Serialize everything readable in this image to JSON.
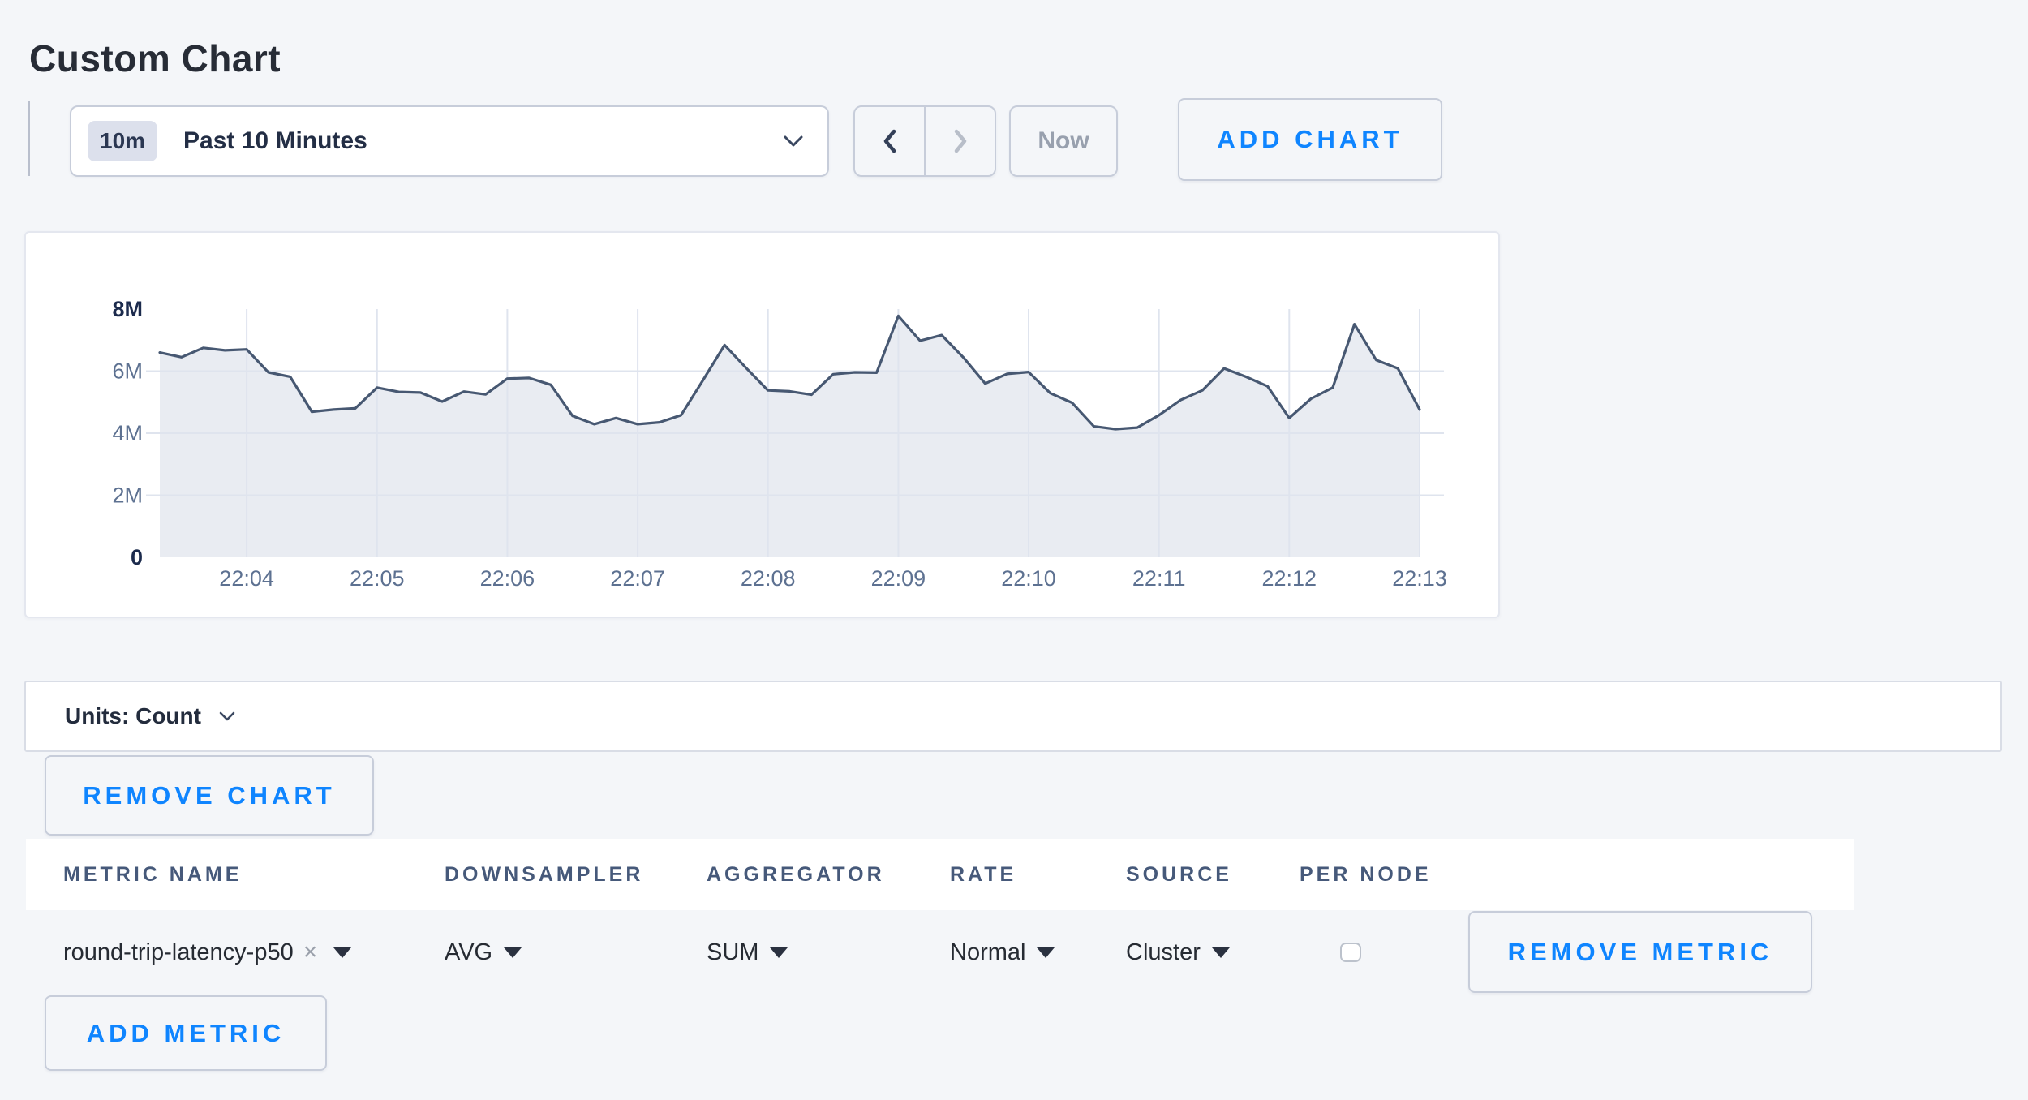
{
  "page": {
    "title": "Custom Chart"
  },
  "toolbar": {
    "time_window_badge": "10m",
    "time_window_label": "Past 10 Minutes",
    "now_label": "Now",
    "add_chart_label": "ADD CHART"
  },
  "units_bar": {
    "label": "Units: Count"
  },
  "remove_chart_label": "REMOVE CHART",
  "metrics_table": {
    "headers": [
      "METRIC NAME",
      "DOWNSAMPLER",
      "AGGREGATOR",
      "RATE",
      "SOURCE",
      "PER NODE"
    ],
    "row": {
      "metric_name": "round-trip-latency-p50",
      "remove_tag": "×",
      "downsampler": "AVG",
      "aggregator": "SUM",
      "rate": "Normal",
      "source": "Cluster",
      "per_node_checked": false,
      "remove_metric_label": "REMOVE METRIC"
    },
    "add_metric_label": "ADD METRIC"
  },
  "colors": {
    "accent_blue": "#0f85ff",
    "line": "#475872",
    "area_fill": "#e9ecf2",
    "grid": "#dfe4ee",
    "tick": "#5d7191",
    "tick_bold": "#1c2b4d"
  },
  "chart_data": {
    "type": "area",
    "title": "",
    "unit": "Count",
    "legend": false,
    "grid": true,
    "start_time": "22:03:20",
    "interval_seconds": 10,
    "y_max_millions": 8,
    "x_first_tick_index": 4,
    "x_tick_step": 6,
    "x_tick_labels": [
      "22:04",
      "22:05",
      "22:06",
      "22:07",
      "22:08",
      "22:09",
      "22:10",
      "22:11",
      "22:12",
      "22:13"
    ],
    "y_ticks": [
      {
        "label": "8M",
        "value": 8,
        "bold": true
      },
      {
        "label": "6M",
        "value": 6,
        "bold": false
      },
      {
        "label": "4M",
        "value": 4,
        "bold": false
      },
      {
        "label": "2M",
        "value": 2,
        "bold": false
      },
      {
        "label": "0",
        "value": 0,
        "bold": true
      }
    ],
    "values_millions": [
      6.6,
      6.45,
      6.75,
      6.67,
      6.7,
      5.96,
      5.82,
      4.69,
      4.76,
      4.8,
      5.47,
      5.33,
      5.31,
      5.02,
      5.34,
      5.25,
      5.76,
      5.78,
      5.56,
      4.56,
      4.29,
      4.49,
      4.29,
      4.35,
      4.58,
      5.7,
      6.84,
      6.1,
      5.38,
      5.35,
      5.24,
      5.9,
      5.96,
      5.95,
      7.78,
      6.98,
      7.16,
      6.44,
      5.6,
      5.91,
      5.97,
      5.29,
      4.98,
      4.22,
      4.13,
      4.18,
      4.58,
      5.07,
      5.38,
      6.09,
      5.82,
      5.51,
      4.49,
      5.11,
      5.47,
      7.51,
      6.36,
      6.09,
      4.76
    ]
  }
}
